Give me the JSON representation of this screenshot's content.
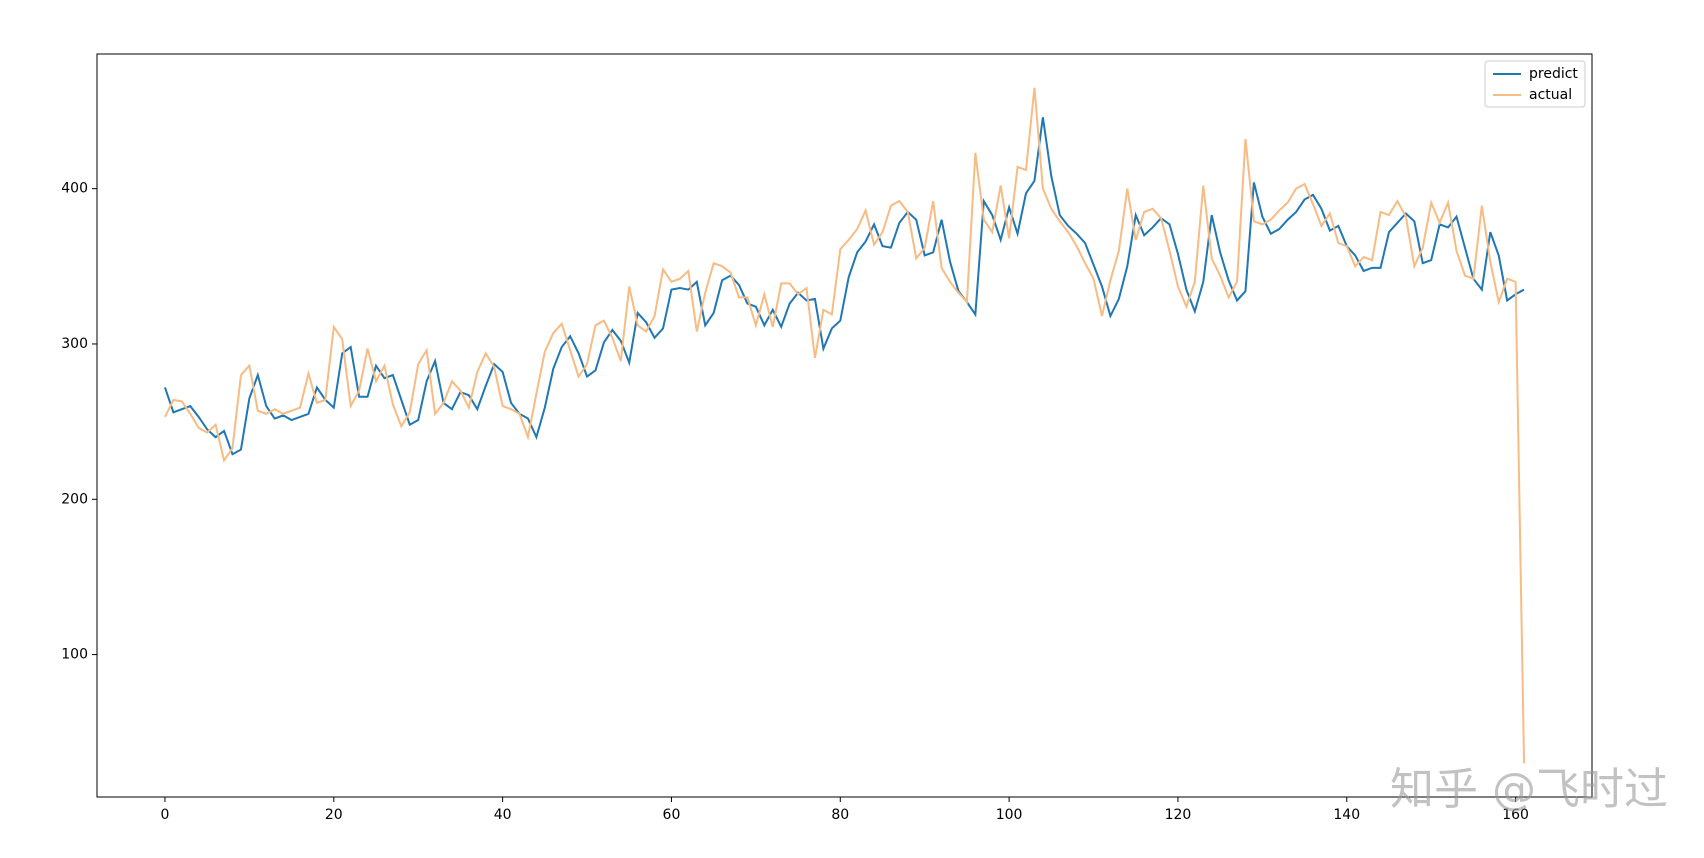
{
  "chart_data": {
    "type": "line",
    "x": [
      0,
      1,
      2,
      3,
      4,
      5,
      6,
      7,
      8,
      9,
      10,
      11,
      12,
      13,
      14,
      15,
      16,
      17,
      18,
      19,
      20,
      21,
      22,
      23,
      24,
      25,
      26,
      27,
      28,
      29,
      30,
      31,
      32,
      33,
      34,
      35,
      36,
      37,
      38,
      39,
      40,
      41,
      42,
      43,
      44,
      45,
      46,
      47,
      48,
      49,
      50,
      51,
      52,
      53,
      54,
      55,
      56,
      57,
      58,
      59,
      60,
      61,
      62,
      63,
      64,
      65,
      66,
      67,
      68,
      69,
      70,
      71,
      72,
      73,
      74,
      75,
      76,
      77,
      78,
      79,
      80,
      81,
      82,
      83,
      84,
      85,
      86,
      87,
      88,
      89,
      90,
      91,
      92,
      93,
      94,
      95,
      96,
      97,
      98,
      99,
      100,
      101,
      102,
      103,
      104,
      105,
      106,
      107,
      108,
      109,
      110,
      111,
      112,
      113,
      114,
      115,
      116,
      117,
      118,
      119,
      120,
      121,
      122,
      123,
      124,
      125,
      126,
      127,
      128,
      129,
      130,
      131,
      132,
      133,
      134,
      135,
      136,
      137,
      138,
      139,
      140,
      141,
      142,
      143,
      144,
      145,
      146,
      147,
      148,
      149,
      150,
      151,
      152,
      153,
      154,
      155,
      156,
      157,
      158,
      159,
      160,
      161
    ],
    "series": [
      {
        "name": "predict",
        "color": "#1f77b4",
        "values": [
          272,
          256,
          258,
          260,
          253,
          245,
          240,
          244,
          229,
          232,
          265,
          280,
          260,
          252,
          254,
          251,
          253,
          255,
          272,
          264,
          259,
          294,
          298,
          266,
          266,
          286,
          278,
          280,
          264,
          248,
          251,
          276,
          289,
          262,
          258,
          269,
          267,
          258,
          273,
          287,
          282,
          262,
          255,
          252,
          240,
          259,
          284,
          298,
          305,
          294,
          279,
          283,
          301,
          309,
          302,
          288,
          320,
          314,
          304,
          310,
          335,
          336,
          335,
          340,
          312,
          320,
          341,
          344,
          338,
          326,
          324,
          312,
          322,
          311,
          326,
          333,
          328,
          329,
          297,
          310,
          315,
          343,
          359,
          366,
          377,
          363,
          362,
          378,
          385,
          380,
          357,
          359,
          380,
          353,
          334,
          327,
          319,
          392,
          383,
          367,
          388,
          371,
          397,
          405,
          446,
          408,
          383,
          376,
          371,
          365,
          351,
          337,
          318,
          329,
          350,
          383,
          370,
          375,
          381,
          377,
          358,
          335,
          321,
          340,
          383,
          359,
          341,
          328,
          334,
          404,
          382,
          371,
          374,
          380,
          385,
          393,
          396,
          387,
          373,
          376,
          363,
          357,
          347,
          349,
          349,
          372,
          378,
          384,
          379,
          352,
          354,
          377,
          375,
          382,
          362,
          342,
          335,
          372,
          357,
          328,
          332,
          335
        ]
      },
      {
        "name": "actual",
        "color": "#f7bb83",
        "values": [
          253,
          264,
          263,
          255,
          246,
          243,
          248,
          225,
          233,
          280,
          286,
          257,
          255,
          258,
          255,
          257,
          259,
          281,
          262,
          264,
          311,
          303,
          260,
          270,
          297,
          276,
          286,
          261,
          247,
          256,
          287,
          296,
          255,
          262,
          276,
          270,
          259,
          282,
          294,
          285,
          260,
          258,
          255,
          240,
          268,
          295,
          307,
          313,
          296,
          279,
          287,
          312,
          315,
          304,
          289,
          337,
          312,
          308,
          318,
          348,
          340,
          342,
          347,
          308,
          333,
          352,
          350,
          346,
          330,
          330,
          312,
          332,
          311,
          339,
          339,
          332,
          336,
          291,
          322,
          319,
          361,
          367,
          374,
          386,
          364,
          372,
          389,
          392,
          385,
          355,
          362,
          392,
          349,
          340,
          333,
          327,
          423,
          380,
          372,
          402,
          368,
          414,
          412,
          465,
          400,
          387,
          379,
          372,
          363,
          352,
          342,
          318,
          341,
          360,
          400,
          367,
          385,
          387,
          381,
          360,
          337,
          324,
          340,
          402,
          355,
          344,
          330,
          340,
          432,
          379,
          377,
          380,
          386,
          391,
          400,
          403,
          390,
          376,
          384,
          365,
          363,
          350,
          356,
          354,
          385,
          383,
          392,
          382,
          350,
          362,
          391,
          378,
          391,
          360,
          344,
          342,
          389,
          353,
          327,
          342,
          340,
          30
        ]
      }
    ],
    "xlim": [
      -8.05,
      169.05
    ],
    "xticks": [
      0,
      20,
      40,
      60,
      80,
      100,
      120,
      140,
      160
    ],
    "ylim": [
      8.3,
      486.7
    ],
    "yticks": [
      100,
      200,
      300,
      400
    ],
    "legend": "upper right",
    "watermark": "知乎 @飞时过"
  }
}
